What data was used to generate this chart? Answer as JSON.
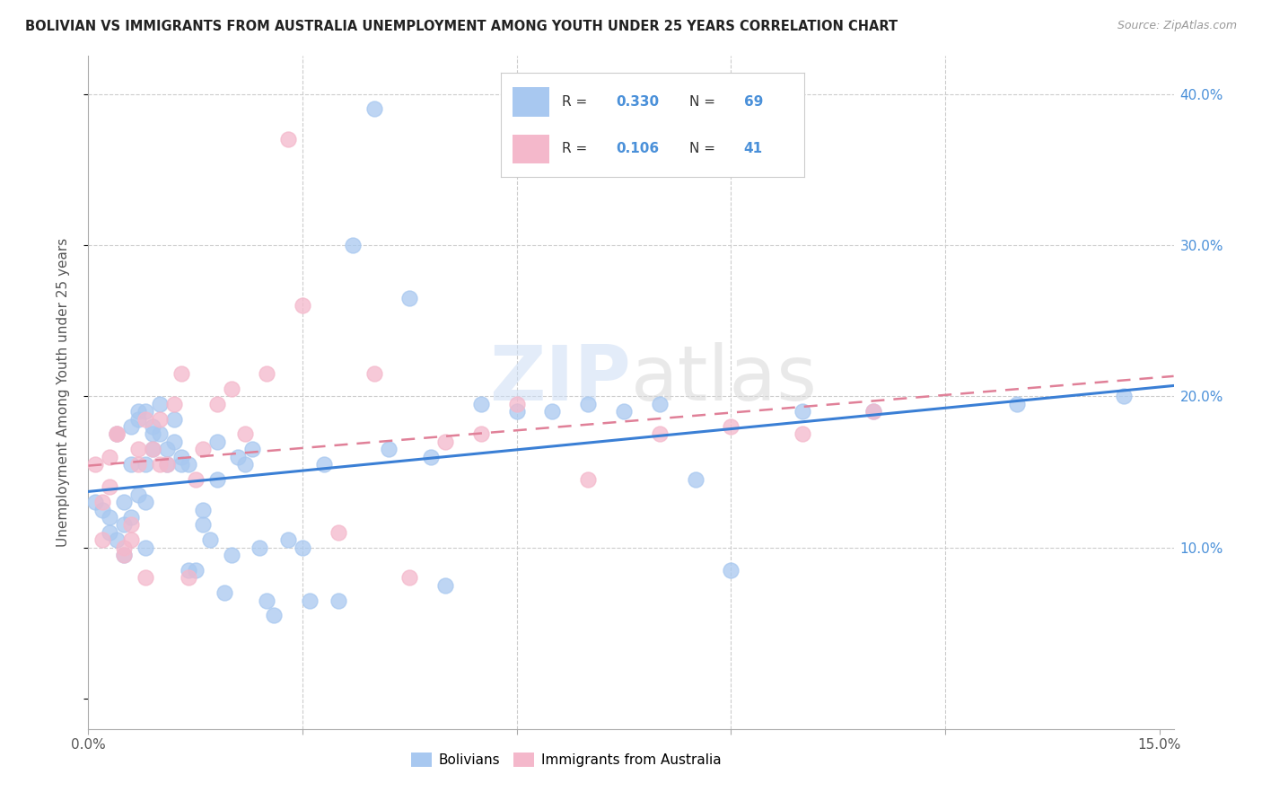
{
  "title": "BOLIVIAN VS IMMIGRANTS FROM AUSTRALIA UNEMPLOYMENT AMONG YOUTH UNDER 25 YEARS CORRELATION CHART",
  "source": "Source: ZipAtlas.com",
  "ylabel": "Unemployment Among Youth under 25 years",
  "xlim": [
    0.0,
    0.152
  ],
  "ylim": [
    -0.02,
    0.425
  ],
  "color_blue": "#a8c8f0",
  "color_pink": "#f4b8cb",
  "color_blue_line": "#3a7fd5",
  "color_pink_line": "#e08098",
  "color_blue_text": "#4a90d9",
  "color_grid": "#cccccc",
  "watermark": "ZIPatlas",
  "bolivians_x": [
    0.001,
    0.002,
    0.003,
    0.003,
    0.004,
    0.004,
    0.005,
    0.005,
    0.005,
    0.006,
    0.006,
    0.006,
    0.007,
    0.007,
    0.007,
    0.008,
    0.008,
    0.008,
    0.008,
    0.009,
    0.009,
    0.009,
    0.01,
    0.01,
    0.011,
    0.011,
    0.012,
    0.012,
    0.013,
    0.013,
    0.014,
    0.014,
    0.015,
    0.016,
    0.016,
    0.017,
    0.018,
    0.018,
    0.019,
    0.02,
    0.021,
    0.022,
    0.023,
    0.024,
    0.025,
    0.026,
    0.028,
    0.03,
    0.031,
    0.033,
    0.035,
    0.037,
    0.04,
    0.042,
    0.045,
    0.048,
    0.05,
    0.055,
    0.06,
    0.065,
    0.07,
    0.075,
    0.08,
    0.085,
    0.09,
    0.1,
    0.11,
    0.13,
    0.145
  ],
  "bolivians_y": [
    0.13,
    0.125,
    0.12,
    0.11,
    0.175,
    0.105,
    0.095,
    0.115,
    0.13,
    0.18,
    0.12,
    0.155,
    0.185,
    0.19,
    0.135,
    0.1,
    0.13,
    0.155,
    0.19,
    0.165,
    0.175,
    0.18,
    0.175,
    0.195,
    0.155,
    0.165,
    0.17,
    0.185,
    0.155,
    0.16,
    0.155,
    0.085,
    0.085,
    0.115,
    0.125,
    0.105,
    0.17,
    0.145,
    0.07,
    0.095,
    0.16,
    0.155,
    0.165,
    0.1,
    0.065,
    0.055,
    0.105,
    0.1,
    0.065,
    0.155,
    0.065,
    0.3,
    0.39,
    0.165,
    0.265,
    0.16,
    0.075,
    0.195,
    0.19,
    0.19,
    0.195,
    0.19,
    0.195,
    0.145,
    0.085,
    0.19,
    0.19,
    0.195,
    0.2
  ],
  "australia_x": [
    0.001,
    0.002,
    0.002,
    0.003,
    0.003,
    0.004,
    0.004,
    0.005,
    0.005,
    0.006,
    0.006,
    0.007,
    0.007,
    0.008,
    0.008,
    0.009,
    0.01,
    0.01,
    0.011,
    0.012,
    0.013,
    0.014,
    0.015,
    0.016,
    0.018,
    0.02,
    0.022,
    0.025,
    0.028,
    0.03,
    0.035,
    0.04,
    0.045,
    0.05,
    0.055,
    0.06,
    0.07,
    0.08,
    0.09,
    0.1,
    0.11
  ],
  "australia_y": [
    0.155,
    0.105,
    0.13,
    0.14,
    0.16,
    0.175,
    0.175,
    0.095,
    0.1,
    0.105,
    0.115,
    0.155,
    0.165,
    0.185,
    0.08,
    0.165,
    0.155,
    0.185,
    0.155,
    0.195,
    0.215,
    0.08,
    0.145,
    0.165,
    0.195,
    0.205,
    0.175,
    0.215,
    0.37,
    0.26,
    0.11,
    0.215,
    0.08,
    0.17,
    0.175,
    0.195,
    0.145,
    0.175,
    0.18,
    0.175,
    0.19
  ]
}
